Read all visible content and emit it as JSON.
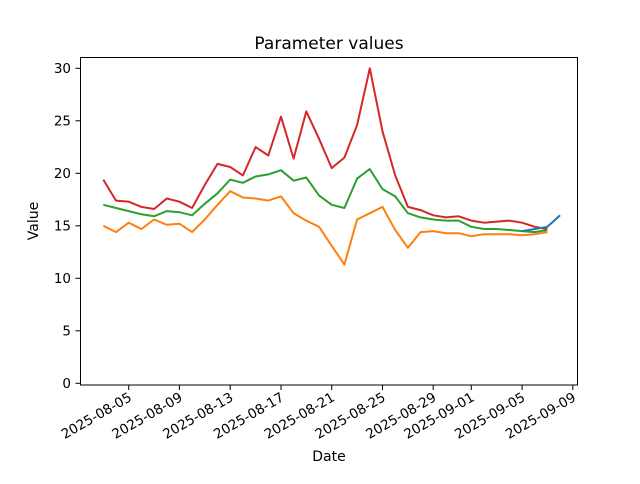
{
  "chart_data": {
    "type": "line",
    "title": "Parameter values",
    "xlabel": "Date",
    "ylabel": "Value",
    "grid": false,
    "legend": null,
    "background": "#ffffff",
    "ylim": [
      0,
      30.9
    ],
    "yticks": [
      0,
      5,
      10,
      15,
      20,
      25,
      30
    ],
    "x_dates": [
      "2025-08-03",
      "2025-08-04",
      "2025-08-05",
      "2025-08-06",
      "2025-08-07",
      "2025-08-08",
      "2025-08-09",
      "2025-08-10",
      "2025-08-11",
      "2025-08-12",
      "2025-08-13",
      "2025-08-14",
      "2025-08-15",
      "2025-08-16",
      "2025-08-17",
      "2025-08-18",
      "2025-08-19",
      "2025-08-20",
      "2025-08-21",
      "2025-08-22",
      "2025-08-23",
      "2025-08-24",
      "2025-08-25",
      "2025-08-26",
      "2025-08-27",
      "2025-08-28",
      "2025-08-29",
      "2025-08-30",
      "2025-08-31",
      "2025-09-01",
      "2025-09-02",
      "2025-09-03",
      "2025-09-04",
      "2025-09-05",
      "2025-09-06",
      "2025-09-07",
      "2025-09-08"
    ],
    "xticks": [
      {
        "label": "2025-08-05",
        "index": 2
      },
      {
        "label": "2025-08-09",
        "index": 6
      },
      {
        "label": "2025-08-13",
        "index": 10
      },
      {
        "label": "2025-08-17",
        "index": 14
      },
      {
        "label": "2025-08-21",
        "index": 18
      },
      {
        "label": "2025-08-25",
        "index": 22
      },
      {
        "label": "2025-08-29",
        "index": 26
      },
      {
        "label": "2025-09-01",
        "index": 29
      },
      {
        "label": "2025-09-05",
        "index": 33
      },
      {
        "label": "2025-09-09",
        "index": 37
      }
    ],
    "series": [
      {
        "color_name": "red",
        "color": "#d62728",
        "start_index": 0,
        "values": [
          19.4,
          17.4,
          17.3,
          16.8,
          16.6,
          17.6,
          17.3,
          16.7,
          18.9,
          20.9,
          20.6,
          19.8,
          22.5,
          21.7,
          25.4,
          21.4,
          25.9,
          23.3,
          20.5,
          21.5,
          24.6,
          30.0,
          24.0,
          19.8,
          16.8,
          16.5,
          16.0,
          15.8,
          15.9,
          15.5,
          15.3,
          15.4,
          15.5,
          15.3,
          14.9,
          14.7
        ]
      },
      {
        "color_name": "green",
        "color": "#2ca02c",
        "start_index": 0,
        "values": [
          17.0,
          16.7,
          16.4,
          16.1,
          15.9,
          16.4,
          16.3,
          16.0,
          17.1,
          18.1,
          19.4,
          19.1,
          19.7,
          19.9,
          20.3,
          19.3,
          19.6,
          17.9,
          17.0,
          16.7,
          19.5,
          20.4,
          18.5,
          17.8,
          16.2,
          15.8,
          15.6,
          15.5,
          15.5,
          14.9,
          14.7,
          14.7,
          14.6,
          14.5,
          14.4,
          14.6
        ]
      },
      {
        "color_name": "orange",
        "color": "#ff7f0e",
        "start_index": 0,
        "values": [
          15.0,
          14.4,
          15.3,
          14.7,
          15.6,
          15.1,
          15.2,
          14.4,
          15.6,
          17.0,
          18.3,
          17.7,
          17.6,
          17.4,
          17.8,
          16.2,
          15.5,
          14.9,
          13.1,
          11.3,
          15.6,
          16.2,
          16.8,
          14.6,
          12.9,
          14.4,
          14.5,
          14.3,
          14.3,
          14.0,
          14.2,
          14.2,
          14.2,
          14.1,
          14.2,
          14.4
        ]
      },
      {
        "color_name": "blue",
        "color": "#1f77b4",
        "start_index": 33,
        "values": [
          14.5,
          14.7,
          14.9,
          16.0
        ]
      }
    ]
  }
}
